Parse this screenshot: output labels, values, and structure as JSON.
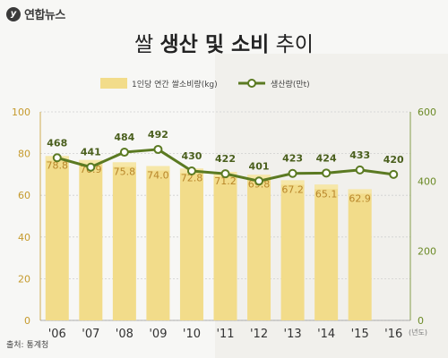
{
  "header": {
    "logo_text": "연합뉴스",
    "title_part1": "쌀 ",
    "title_bold": "생산 및 소비",
    "title_part2": " 추이"
  },
  "source": "출처: 통계청",
  "x_unit": "(년도)",
  "colors": {
    "bar": "#f2dc8a",
    "bar_highlight": "#f6e7a8",
    "line": "#5b7a22",
    "left_tick": "#c59a2c",
    "right_tick": "#6b8a26"
  },
  "chart_data": {
    "type": "bar",
    "categories": [
      "'06",
      "'07",
      "'08",
      "'09",
      "'10",
      "'11",
      "'12",
      "'13",
      "'14",
      "'15",
      "'16"
    ],
    "series": [
      {
        "name": "1인당 연간 쌀소비량(kg)",
        "type": "bar",
        "axis": "left",
        "values": [
          78.8,
          76.9,
          75.8,
          74.0,
          72.8,
          71.2,
          69.8,
          67.2,
          65.1,
          62.9,
          null
        ]
      },
      {
        "name": "생산량(만t)",
        "type": "line",
        "axis": "right",
        "values": [
          468,
          441,
          484,
          492,
          430,
          422,
          401,
          423,
          424,
          433,
          420
        ]
      }
    ],
    "left_axis": {
      "min": 0,
      "max": 100,
      "ticks": [
        0,
        20,
        40,
        60,
        80,
        100
      ]
    },
    "right_axis": {
      "min": 0,
      "max": 600,
      "ticks": [
        0,
        200,
        400,
        600
      ]
    },
    "value_labels_left": [
      "78.8",
      "76.9",
      "75.8",
      "74.0",
      "72.8",
      "71.2",
      "69.8",
      "67.2",
      "65.1",
      "62.9",
      ""
    ],
    "value_labels_right": [
      "468",
      "441",
      "484",
      "492",
      "430",
      "422",
      "401",
      "423",
      "424",
      "433",
      "420"
    ],
    "grid": true,
    "legend": "top"
  }
}
